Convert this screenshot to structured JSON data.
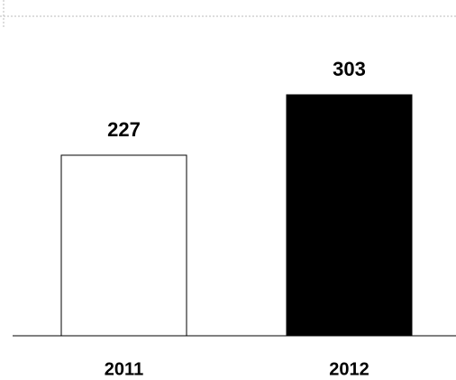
{
  "chart_data": {
    "type": "bar",
    "categories": [
      "2011",
      "2012"
    ],
    "values": [
      227,
      303
    ],
    "colors": [
      "#ffffff",
      "#000000"
    ]
  }
}
